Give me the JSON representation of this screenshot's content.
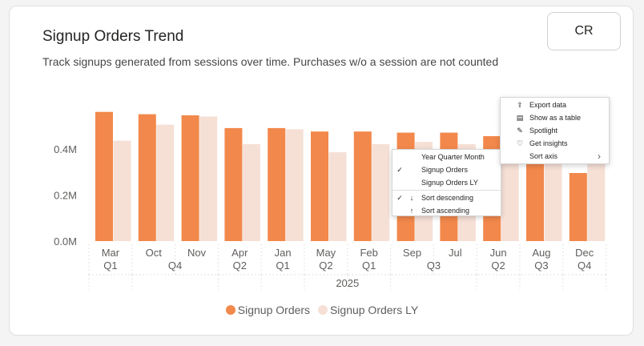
{
  "header": {
    "title": "Signup Orders Trend",
    "subtitle": "Track signups generated from sessions over time. Purchases w/o a session are not counted",
    "avatar": "CR"
  },
  "colors": {
    "series_primary": "#f2884b",
    "series_secondary": "#f6e0d6",
    "axis_text": "#605e5c",
    "grid": "#e1dfdd"
  },
  "chart_data": {
    "type": "bar",
    "categories": [
      "Mar",
      "Oct",
      "Nov",
      "Apr",
      "Jan",
      "May",
      "Feb",
      "Sep",
      "Jul",
      "Jun",
      "Aug",
      "Dec"
    ],
    "quarter_groups": [
      {
        "label": "Q1",
        "start": 0,
        "end": 0
      },
      {
        "label": "Q4",
        "start": 1,
        "end": 2
      },
      {
        "label": "Q2",
        "start": 3,
        "end": 3
      },
      {
        "label": "Q1",
        "start": 4,
        "end": 4
      },
      {
        "label": "Q2",
        "start": 5,
        "end": 5
      },
      {
        "label": "Q1",
        "start": 6,
        "end": 6
      },
      {
        "label": "Q3",
        "start": 7,
        "end": 8
      },
      {
        "label": "Q2",
        "start": 9,
        "end": 9
      },
      {
        "label": "Q3",
        "start": 10,
        "end": 10
      },
      {
        "label": "Q4",
        "start": 11,
        "end": 11
      }
    ],
    "year_label": "2025",
    "series": [
      {
        "name": "Signup Orders",
        "values": [
          560000,
          550000,
          545000,
          490000,
          490000,
          475000,
          475000,
          470000,
          470000,
          455000,
          430000,
          295000
        ]
      },
      {
        "name": "Signup Orders LY",
        "values": [
          435000,
          505000,
          540000,
          420000,
          485000,
          385000,
          420000,
          430000,
          420000,
          400000,
          390000,
          395000
        ]
      }
    ],
    "yticks": [
      {
        "value": 0,
        "label": "0.0M"
      },
      {
        "value": 200000,
        "label": "0.2M"
      },
      {
        "value": 400000,
        "label": "0.4M"
      }
    ],
    "ylim": [
      0,
      600000
    ],
    "legend_position": "bottom"
  },
  "context_menu_main": {
    "items": [
      {
        "icon": "export-icon",
        "glyph": "⇪",
        "label": "Export data"
      },
      {
        "icon": "table-icon",
        "glyph": "▤",
        "label": "Show as a table"
      },
      {
        "icon": "spotlight-icon",
        "glyph": "✎",
        "label": "Spotlight"
      },
      {
        "icon": "lightbulb-icon",
        "glyph": "♡",
        "label": "Get insights"
      },
      {
        "icon": "",
        "glyph": "",
        "label": "Sort axis"
      }
    ],
    "chevron": "›"
  },
  "context_menu_sort": {
    "items": [
      {
        "check": "",
        "label": "Year Quarter Month"
      },
      {
        "check": "✓",
        "label": "Signup Orders"
      },
      {
        "check": "",
        "label": "Signup Orders LY"
      },
      {
        "check": "✓",
        "icon": "sort-descending-icon",
        "glyph": "↓",
        "label": "Sort descending"
      },
      {
        "check": "",
        "icon": "sort-ascending-icon",
        "glyph": "↑",
        "label": "Sort ascending"
      }
    ]
  }
}
